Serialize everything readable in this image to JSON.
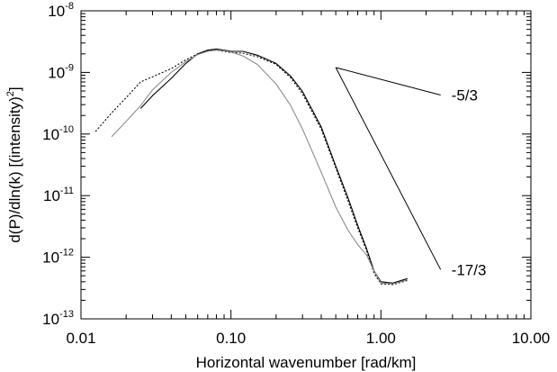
{
  "chart_data": {
    "type": "line",
    "xlabel": "Horizontal wavenumber [rad/km]",
    "ylabel_main": "d(P)/dln(k) [(intensity)",
    "ylabel_sup": "2",
    "ylabel_end": "]",
    "xscale": "log",
    "yscale": "log",
    "xlim": [
      0.01,
      10
    ],
    "ylim": [
      1e-13,
      1e-08
    ],
    "grid": false,
    "x_ticks": [
      {
        "value": 0.01,
        "label": "0.01"
      },
      {
        "value": 0.1,
        "label": "0.10"
      },
      {
        "value": 1,
        "label": "1.00"
      },
      {
        "value": 10,
        "label": "10.00"
      }
    ],
    "y_ticks": [
      {
        "value": 1e-08,
        "base": "10",
        "exp": "-8"
      },
      {
        "value": 1e-09,
        "base": "10",
        "exp": "-9"
      },
      {
        "value": 1e-10,
        "base": "10",
        "exp": "-10"
      },
      {
        "value": 1e-11,
        "base": "10",
        "exp": "-11"
      },
      {
        "value": 1e-12,
        "base": "10",
        "exp": "-12"
      },
      {
        "value": 1e-13,
        "base": "10",
        "exp": "-13"
      }
    ],
    "series": [
      {
        "style": "solid",
        "color": "#000000",
        "x": [
          0.025,
          0.03,
          0.04,
          0.05,
          0.06,
          0.07,
          0.08,
          0.09,
          0.1,
          0.12,
          0.15,
          0.2,
          0.25,
          0.3,
          0.4,
          0.5,
          0.6,
          0.7,
          0.8,
          0.9,
          1.0,
          1.2,
          1.5
        ],
        "y": [
          2.6e-10,
          4.2e-10,
          8e-10,
          1.4e-09,
          2e-09,
          2.3e-09,
          2.4e-09,
          2.3e-09,
          2.2e-09,
          2.2e-09,
          1.9e-09,
          1.4e-09,
          8.7e-10,
          4.9e-10,
          1.3e-10,
          3e-11,
          9.5e-12,
          3.3e-12,
          1.4e-12,
          6e-13,
          4e-13,
          3.8e-13,
          4.5e-13
        ]
      },
      {
        "style": "dotted",
        "color": "#000000",
        "x": [
          0.0125,
          0.016,
          0.02,
          0.025,
          0.03,
          0.04,
          0.05,
          0.06,
          0.07,
          0.08,
          0.09,
          0.1,
          0.12,
          0.15,
          0.2,
          0.25,
          0.3,
          0.4,
          0.5,
          0.6,
          0.7,
          0.8,
          0.9,
          1.0,
          1.2,
          1.5
        ],
        "y": [
          1.1e-10,
          2.2e-10,
          3.9e-10,
          7e-10,
          8.5e-10,
          1.15e-09,
          1.6e-09,
          2e-09,
          2.25e-09,
          2.3e-09,
          2.2e-09,
          2.1e-09,
          2.05e-09,
          1.8e-09,
          1.35e-09,
          8.2e-10,
          4.5e-10,
          1.2e-10,
          2.8e-11,
          8.5e-12,
          3e-12,
          1.3e-12,
          5.5e-13,
          3.7e-13,
          3.6e-13,
          4.2e-13
        ]
      },
      {
        "style": "solid",
        "color": "#8c8c8c",
        "x": [
          0.016,
          0.02,
          0.025,
          0.03,
          0.04,
          0.05,
          0.06,
          0.07,
          0.08,
          0.09,
          0.1,
          0.12,
          0.15,
          0.2,
          0.25,
          0.3,
          0.4,
          0.5,
          0.6,
          0.7,
          0.8,
          0.9,
          1.0,
          1.2,
          1.5
        ],
        "y": [
          9e-11,
          1.6e-10,
          2.9e-10,
          5.2e-10,
          1e-09,
          1.5e-09,
          1.95e-09,
          2.2e-09,
          2.3e-09,
          2.25e-09,
          2.15e-09,
          1.85e-09,
          1.35e-09,
          6.5e-10,
          2.9e-10,
          1.2e-10,
          2.4e-11,
          6.5e-12,
          2.8e-12,
          1.6e-12,
          1.1e-12,
          6e-13,
          3.8e-13,
          3.7e-13,
          4.3e-13
        ]
      }
    ],
    "reference_lines": [
      {
        "label": "-5/3",
        "x": [
          0.5,
          2.5
        ],
        "y": [
          1.2e-09,
          4.3e-10
        ]
      },
      {
        "label": "-17/3",
        "x": [
          0.5,
          2.5
        ],
        "y": [
          1.2e-09,
          6.3e-13
        ]
      }
    ]
  }
}
